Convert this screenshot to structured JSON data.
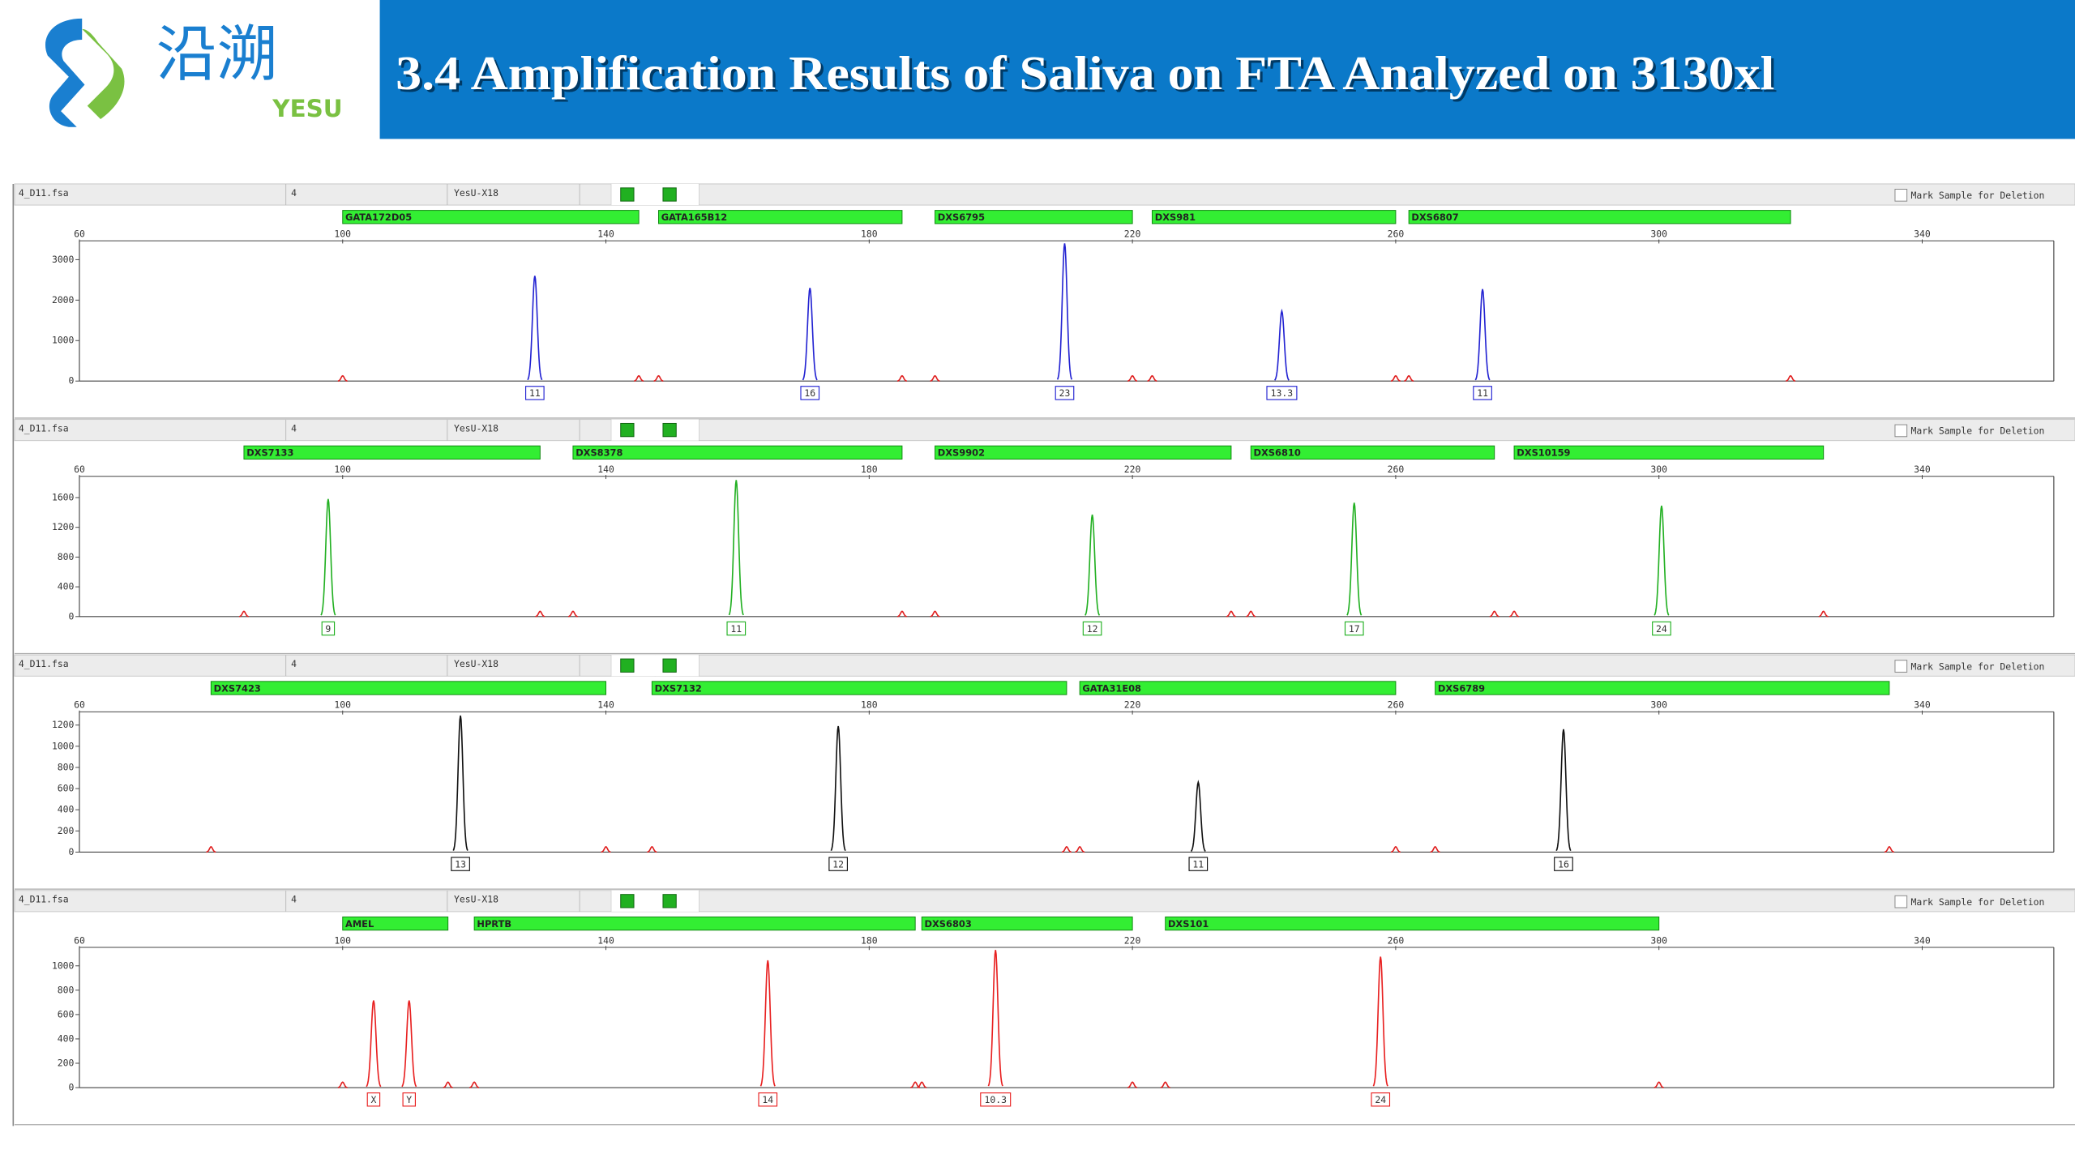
{
  "header": {
    "logo_cn": "沿溯",
    "logo_en": "YESU",
    "title": "3.4 Amplification Results of Saliva on FTA Analyzed on 3130xl"
  },
  "chart_data": [
    {
      "type": "electropherogram",
      "file": "4_D11.fsa",
      "sample": "4",
      "panel": "YesU-X18",
      "checkbox_label": "Mark Sample for Deletion",
      "xlim": [
        60,
        360
      ],
      "xticks": [
        60,
        100,
        140,
        180,
        220,
        260,
        300,
        340
      ],
      "ylim": [
        0,
        3400
      ],
      "yticks": [
        0,
        1000,
        2000,
        3000
      ],
      "markers": [
        {
          "label": "GATA172D05",
          "start": 100,
          "end": 145
        },
        {
          "label": "GATA165B12",
          "start": 148,
          "end": 185
        },
        {
          "label": "DXS6795",
          "start": 190,
          "end": 220
        },
        {
          "label": "DXS981",
          "start": 223,
          "end": 260
        },
        {
          "label": "DXS6807",
          "start": 262,
          "end": 320
        }
      ],
      "peaks": {
        "color": "#2323d2",
        "x": [
          129.2,
          171.0,
          209.7,
          242.7,
          273.2
        ],
        "values": [
          2600,
          2300,
          3400,
          1730,
          2270
        ],
        "labels": [
          "11",
          "16",
          "23",
          "13.3",
          "11"
        ]
      },
      "standard": {
        "color": "#e02020",
        "x": [
          100,
          145,
          148,
          185,
          190,
          220,
          223,
          260,
          262,
          320
        ],
        "values": [
          130,
          130,
          130,
          130,
          130,
          130,
          130,
          130,
          130,
          130
        ]
      }
    },
    {
      "type": "electropherogram",
      "file": "4_D11.fsa",
      "sample": "4",
      "panel": "YesU-X18",
      "checkbox_label": "Mark Sample for Deletion",
      "xlim": [
        60,
        360
      ],
      "xticks": [
        60,
        100,
        140,
        180,
        220,
        260,
        300,
        340
      ],
      "ylim": [
        0,
        1850
      ],
      "yticks": [
        0,
        400,
        800,
        1200,
        1600
      ],
      "markers": [
        {
          "label": "DXS7133",
          "start": 85,
          "end": 130
        },
        {
          "label": "DXS8378",
          "start": 135,
          "end": 185
        },
        {
          "label": "DXS9902",
          "start": 190,
          "end": 235
        },
        {
          "label": "DXS6810",
          "start": 238,
          "end": 275
        },
        {
          "label": "DXS10159",
          "start": 278,
          "end": 325
        }
      ],
      "peaks": {
        "color": "#22b022",
        "x": [
          97.8,
          159.8,
          213.9,
          253.7,
          300.4
        ],
        "values": [
          1580,
          1835,
          1370,
          1530,
          1490
        ],
        "labels": [
          "9",
          "11",
          "12",
          "17",
          "24"
        ]
      },
      "standard": {
        "color": "#e02020",
        "x": [
          85,
          130,
          135,
          185,
          190,
          235,
          238,
          275,
          278,
          325
        ],
        "values": [
          70,
          70,
          70,
          70,
          70,
          70,
          70,
          70,
          70,
          70
        ]
      }
    },
    {
      "type": "electropherogram",
      "file": "4_D11.fsa",
      "sample": "4",
      "panel": "YesU-X18",
      "checkbox_label": "Mark Sample for Deletion",
      "xlim": [
        60,
        360
      ],
      "xticks": [
        60,
        100,
        140,
        180,
        220,
        260,
        300,
        340
      ],
      "ylim": [
        0,
        1300
      ],
      "yticks": [
        0,
        200,
        400,
        600,
        800,
        1000,
        1200
      ],
      "markers": [
        {
          "label": "DXS7423",
          "start": 80,
          "end": 140
        },
        {
          "label": "DXS7132",
          "start": 147,
          "end": 210
        },
        {
          "label": "GATA31E08",
          "start": 212,
          "end": 260
        },
        {
          "label": "DXS6789",
          "start": 266,
          "end": 335
        }
      ],
      "peaks": {
        "color": "#111111",
        "x": [
          117.9,
          175.3,
          230.0,
          285.5
        ],
        "values": [
          1290,
          1190,
          660,
          1160
        ],
        "labels": [
          "13",
          "12",
          "11",
          "16"
        ]
      },
      "standard": {
        "color": "#e02020",
        "x": [
          80,
          140,
          147,
          210,
          212,
          260,
          266,
          335
        ],
        "values": [
          50,
          50,
          50,
          50,
          50,
          50,
          50,
          50
        ]
      }
    },
    {
      "type": "electropherogram",
      "file": "4_D11.fsa",
      "sample": "4",
      "panel": "YesU-X18",
      "checkbox_label": "Mark Sample for Deletion",
      "xlim": [
        60,
        360
      ],
      "xticks": [
        60,
        100,
        140,
        180,
        220,
        260,
        300,
        340
      ],
      "ylim": [
        0,
        1130
      ],
      "yticks": [
        0,
        200,
        400,
        600,
        800,
        1000
      ],
      "markers": [
        {
          "label": "AMEL",
          "start": 100,
          "end": 116
        },
        {
          "label": "HPRTB",
          "start": 120,
          "end": 187
        },
        {
          "label": "DXS6803",
          "start": 188,
          "end": 220
        },
        {
          "label": "DXS101",
          "start": 225,
          "end": 300
        }
      ],
      "peaks": {
        "color": "#e82020",
        "x": [
          104.7,
          110.1,
          164.6,
          199.2,
          257.7
        ],
        "values": [
          715,
          715,
          1045,
          1130,
          1075
        ],
        "labels": [
          "X",
          "Y",
          "14",
          "10.3",
          "24"
        ]
      },
      "standard": {
        "color": "#e02020",
        "x": [
          100,
          116,
          120,
          187,
          188,
          220,
          225,
          300
        ],
        "values": [
          45,
          45,
          45,
          45,
          45,
          45,
          45,
          45
        ]
      }
    }
  ]
}
